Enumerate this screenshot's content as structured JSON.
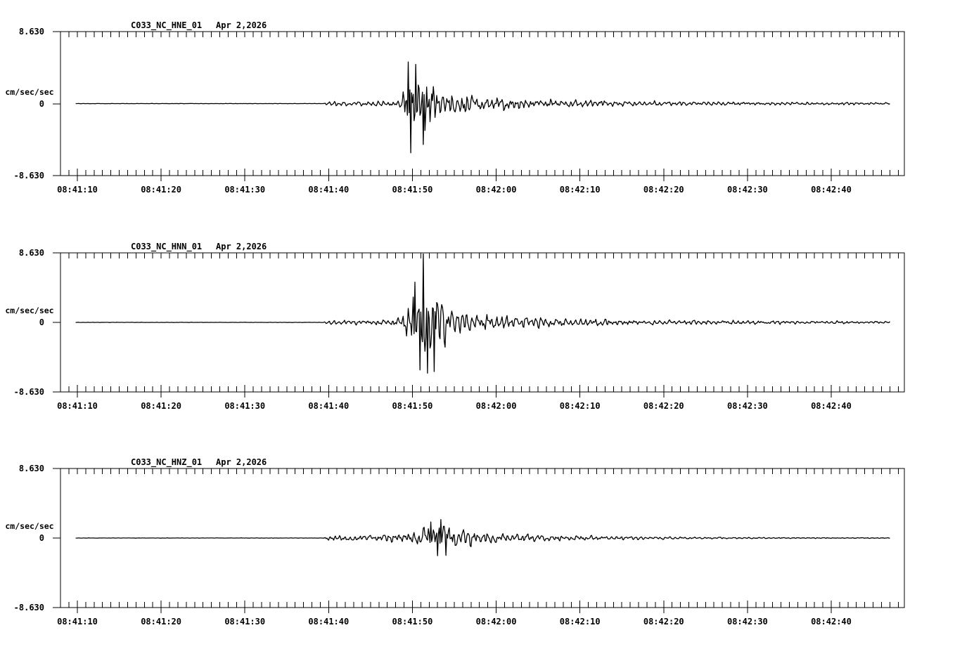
{
  "colors": {
    "background": "#ffffff",
    "trace": "#000000",
    "text": "#000000",
    "axis": "#000000"
  },
  "chart_data": {
    "type": "line",
    "subtype": "seismogram-multipanel",
    "date_label": "Apr 2,2026",
    "amplitude_units_label": "cm/sec/sec",
    "y_axis": {
      "max": 8.63,
      "min": -8.63,
      "max_label": "8.630",
      "zero_label": "0",
      "min_label": "-8.630"
    },
    "x_axis": {
      "start_time_label": "08:41:10",
      "tick_labels": [
        "08:41:10",
        "08:41:20",
        "08:41:30",
        "08:41:40",
        "08:41:50",
        "08:42:00",
        "08:42:10",
        "08:42:20",
        "08:42:30",
        "08:42:40"
      ],
      "tick_times_sec": [
        0,
        10,
        20,
        30,
        40,
        50,
        60,
        70,
        80,
        90
      ],
      "minor_tick_interval_sec": 1,
      "major_tick_interval_sec": 10,
      "grid": false
    },
    "legend": null,
    "panels": [
      {
        "title": "C033_NC_HNE_01",
        "channel": "HNE",
        "noise_onset_sec": 29.9,
        "peak_amplitude": 6.0,
        "envelope": [
          [
            -0.2,
            0.02
          ],
          [
            29.4,
            0.02
          ],
          [
            29.9,
            0.32
          ],
          [
            34,
            0.3
          ],
          [
            37.5,
            0.38
          ],
          [
            38.6,
            0.55
          ],
          [
            39.2,
            3.2
          ],
          [
            39.8,
            6.0
          ],
          [
            40.6,
            4.0
          ],
          [
            41.6,
            4.6
          ],
          [
            42.6,
            3.2
          ],
          [
            43.6,
            2.4
          ],
          [
            44.6,
            1.5
          ],
          [
            45.6,
            1.3
          ],
          [
            46.6,
            1.6
          ],
          [
            47.6,
            1.0
          ],
          [
            49,
            0.8
          ],
          [
            51,
            0.9
          ],
          [
            53,
            0.65
          ],
          [
            56,
            0.55
          ],
          [
            60,
            0.45
          ],
          [
            65,
            0.36
          ],
          [
            70,
            0.3
          ],
          [
            75,
            0.26
          ],
          [
            80,
            0.22
          ],
          [
            85,
            0.2
          ],
          [
            90,
            0.18
          ],
          [
            97,
            0.16
          ]
        ],
        "spikes": [
          [
            39.5,
            5.0
          ],
          [
            39.75,
            -5.9
          ],
          [
            40.35,
            4.7
          ],
          [
            41.3,
            -4.9
          ]
        ]
      },
      {
        "title": "C033_NC_HNN_01",
        "channel": "HNN",
        "noise_onset_sec": 29.9,
        "peak_amplitude": 8.6,
        "envelope": [
          [
            -0.2,
            0.02
          ],
          [
            29.4,
            0.02
          ],
          [
            29.9,
            0.32
          ],
          [
            34,
            0.3
          ],
          [
            37.5,
            0.4
          ],
          [
            38.8,
            0.7
          ],
          [
            39.6,
            4.2
          ],
          [
            40.2,
            5.4
          ],
          [
            40.9,
            4.4
          ],
          [
            41.3,
            6.0
          ],
          [
            42,
            5.2
          ],
          [
            42.7,
            5.6
          ],
          [
            43.4,
            3.8
          ],
          [
            44.3,
            2.5
          ],
          [
            45.3,
            1.8
          ],
          [
            46.5,
            1.4
          ],
          [
            48,
            1.1
          ],
          [
            50,
            1.0
          ],
          [
            52,
            0.85
          ],
          [
            54,
            0.95
          ],
          [
            56,
            0.7
          ],
          [
            60,
            0.55
          ],
          [
            65,
            0.42
          ],
          [
            70,
            0.34
          ],
          [
            75,
            0.3
          ],
          [
            80,
            0.25
          ],
          [
            85,
            0.22
          ],
          [
            90,
            0.2
          ],
          [
            97,
            0.17
          ]
        ],
        "spikes": [
          [
            40.3,
            5.0
          ],
          [
            40.9,
            -5.9
          ],
          [
            41.25,
            8.6
          ],
          [
            41.8,
            -6.3
          ],
          [
            42.6,
            -6.1
          ]
        ]
      },
      {
        "title": "C033_NC_HNZ_01",
        "channel": "HNZ",
        "noise_onset_sec": 29.9,
        "peak_amplitude": 2.3,
        "envelope": [
          [
            -0.2,
            0.02
          ],
          [
            29.4,
            0.02
          ],
          [
            29.9,
            0.42
          ],
          [
            33,
            0.4
          ],
          [
            36,
            0.48
          ],
          [
            38.5,
            0.62
          ],
          [
            40,
            1.0
          ],
          [
            41.5,
            1.55
          ],
          [
            42.5,
            1.9
          ],
          [
            43.6,
            2.2
          ],
          [
            44.4,
            1.85
          ],
          [
            45.5,
            1.5
          ],
          [
            47,
            1.1
          ],
          [
            48.5,
            0.85
          ],
          [
            50,
            0.72
          ],
          [
            52,
            0.58
          ],
          [
            54,
            0.5
          ],
          [
            57,
            0.4
          ],
          [
            60,
            0.34
          ],
          [
            64,
            0.27
          ],
          [
            68,
            0.21
          ],
          [
            72,
            0.17
          ],
          [
            76,
            0.13
          ],
          [
            80,
            0.1
          ],
          [
            85,
            0.08
          ],
          [
            90,
            0.06
          ],
          [
            97,
            0.05
          ]
        ],
        "spikes": [
          [
            42.2,
            2.0
          ],
          [
            43.0,
            -2.2
          ],
          [
            43.4,
            2.3
          ],
          [
            44.0,
            -2.15
          ]
        ]
      }
    ]
  }
}
